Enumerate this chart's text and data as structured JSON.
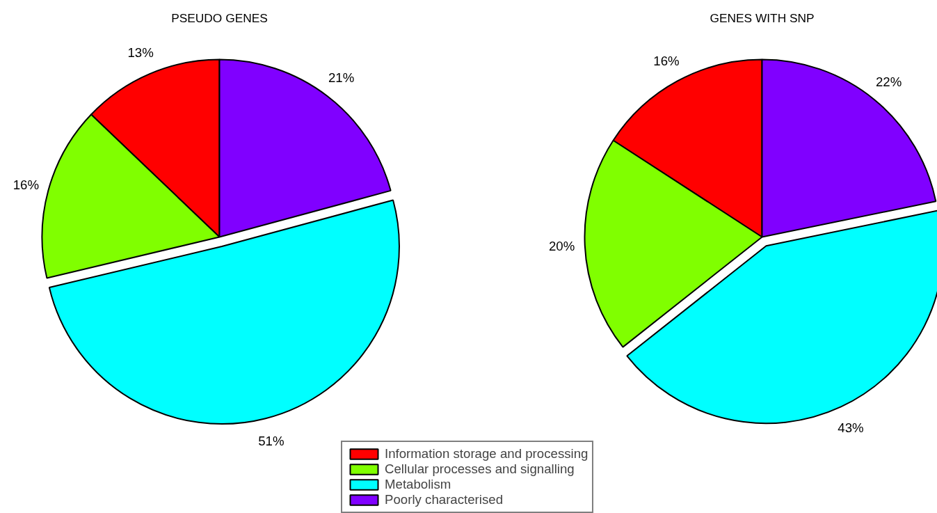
{
  "chart_data": [
    {
      "type": "pie",
      "title": "PSEUDO GENES",
      "categories": [
        "Information storage and processing",
        "Cellular processes and signalling",
        "Metabolism",
        "Poorly characterised"
      ],
      "values": [
        13,
        16,
        51,
        21
      ],
      "colors": [
        "#ff0000",
        "#80ff00",
        "#00ffff",
        "#8000ff"
      ],
      "value_labels": [
        "13%",
        "16%",
        "51%",
        "21%"
      ],
      "legend": "bottom"
    },
    {
      "type": "pie",
      "title": "GENES WITH SNP",
      "categories": [
        null,
        null,
        null,
        null
      ],
      "values": [
        16,
        20,
        43,
        22
      ],
      "colors": [
        "#ff0000",
        "#80ff00",
        "#00ffff",
        "#8000ff"
      ],
      "value_labels": [
        "16%",
        "20%",
        "43%",
        "22%"
      ]
    }
  ]
}
